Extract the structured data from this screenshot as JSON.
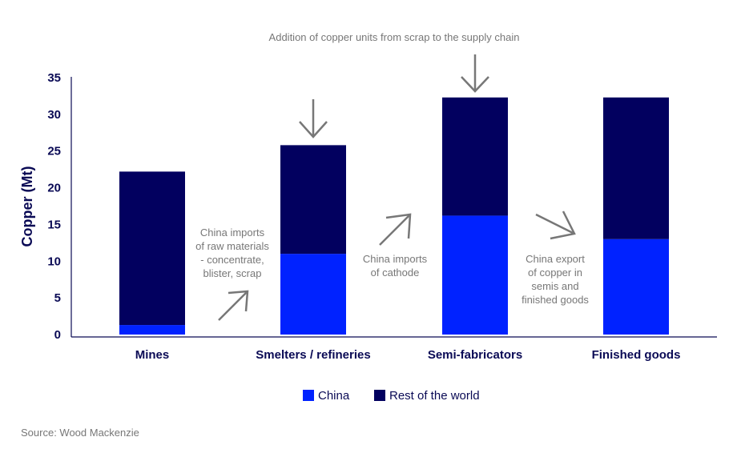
{
  "chart_data": {
    "type": "bar",
    "stacked": true,
    "title": "",
    "xlabel": "",
    "ylabel": "Copper (Mt)",
    "ylim": [
      0,
      35
    ],
    "yticks": [
      0,
      5,
      10,
      15,
      20,
      25,
      30,
      35
    ],
    "categories": [
      "Mines",
      "Smelters / refineries",
      "Semi-fabricators",
      "Finished goods"
    ],
    "series": [
      {
        "name": "China",
        "color": "#0022ff",
        "values": [
          1.3,
          11.0,
          16.2,
          13.0
        ]
      },
      {
        "name": "Rest of the world",
        "color": "#02005f",
        "values": [
          20.9,
          14.8,
          16.1,
          19.3
        ]
      }
    ],
    "legend_position": "bottom-center",
    "grid": false,
    "annotations": {
      "top": "Addition of copper units from scrap to the supply chain",
      "raw_materials": [
        "China imports",
        "of raw materials",
        "- concentrate,",
        "blister, scrap"
      ],
      "cathode": [
        "China imports",
        "of cathode"
      ],
      "export": [
        "China export",
        "of copper in",
        "semis and",
        "finished goods"
      ]
    }
  },
  "source": "Source: Wood Mackenzie"
}
